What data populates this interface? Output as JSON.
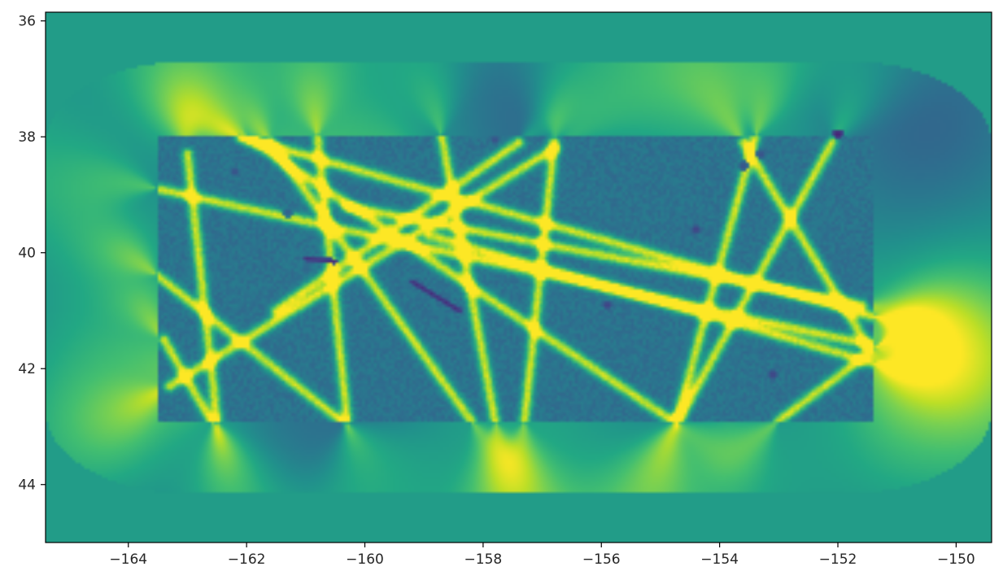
{
  "chart_data": {
    "type": "heatmap",
    "title": "",
    "xlabel": "",
    "ylabel": "",
    "colormap": "viridis",
    "xlim": [
      -165.4,
      -149.4
    ],
    "ylim": [
      45.0,
      35.85
    ],
    "y_axis_inverted": true,
    "grid": false,
    "legend": "none",
    "x_ticks": [
      -164,
      -162,
      -160,
      -158,
      -156,
      -154,
      -152,
      -150
    ],
    "x_tick_labels": [
      "−164",
      "−162",
      "−160",
      "−158",
      "−156",
      "−154",
      "−152",
      "−150"
    ],
    "y_ticks": [
      36,
      38,
      40,
      42,
      44
    ],
    "y_tick_labels": [
      "36",
      "38",
      "40",
      "42",
      "44"
    ],
    "background_value": 0.55,
    "field_extent": {
      "x": [
        -165.4,
        -149.4
      ],
      "y": [
        35.85,
        45.0
      ],
      "corner_radius_deg": 2.3
    },
    "survey_region": {
      "x": [
        -163.5,
        -151.4
      ],
      "y": [
        38.0,
        42.9
      ],
      "value": 0.38
    },
    "track_lines": [
      {
        "x": [
          -162.1,
          -151.4
        ],
        "y": [
          38.0,
          41.1
        ]
      },
      {
        "x": [
          -163.5,
          -151.4
        ],
        "y": [
          38.9,
          41.6
        ]
      },
      {
        "x": [
          -162.0,
          -154.8
        ],
        "y": [
          38.0,
          42.9
        ]
      },
      {
        "x": [
          -163.5,
          -160.4
        ],
        "y": [
          40.4,
          42.9
        ]
      },
      {
        "x": [
          -163.4,
          -162.6
        ],
        "y": [
          41.5,
          42.9
        ]
      },
      {
        "x": [
          -160.8,
          -160.3
        ],
        "y": [
          38.0,
          42.9
        ]
      },
      {
        "x": [
          -158.7,
          -157.8
        ],
        "y": [
          38.0,
          42.9
        ]
      },
      {
        "x": [
          -156.8,
          -157.3
        ],
        "y": [
          38.1,
          42.9
        ]
      },
      {
        "x": [
          -153.4,
          -154.7
        ],
        "y": [
          38.0,
          42.8
        ]
      },
      {
        "x": [
          -152.1,
          -154.7
        ],
        "y": [
          38.1,
          42.9
        ]
      },
      {
        "x": [
          -153.6,
          -151.5
        ],
        "y": [
          38.1,
          41.6
        ]
      },
      {
        "x": [
          -161.6,
          -158.2
        ],
        "y": [
          38.1,
          42.9
        ]
      },
      {
        "x": [
          -163.3,
          -156.8
        ],
        "y": [
          42.3,
          38.2
        ]
      },
      {
        "x": [
          -161.5,
          -157.4
        ],
        "y": [
          41.0,
          38.1
        ]
      },
      {
        "x": [
          -160.3,
          -151.6
        ],
        "y": [
          39.2,
          40.9
        ]
      },
      {
        "x": [
          -158.9,
          -151.4
        ],
        "y": [
          39.7,
          41.9
        ]
      },
      {
        "x": [
          -153.0,
          -151.3
        ],
        "y": [
          42.9,
          41.6
        ]
      },
      {
        "x": [
          -163.0,
          -162.5
        ],
        "y": [
          38.3,
          42.9
        ]
      }
    ],
    "fan_sources": [
      {
        "x": [
          -163.4,
          -162.6
        ],
        "y": [
          41.5,
          42.9
        ],
        "peak": 0.95
      },
      {
        "x": [
          -162.0,
          -157.0
        ],
        "y": [
          38.0,
          38.2
        ],
        "peak": 0.9
      },
      {
        "x": [
          -151.4,
          -151.5
        ],
        "y": [
          41.2,
          41.7
        ],
        "peak": 1.0
      },
      {
        "x": [
          -154.7,
          -153.0
        ],
        "y": [
          42.9,
          42.9
        ],
        "peak": 0.85
      }
    ],
    "dark_spots": [
      {
        "x": -152.0,
        "y": 37.95,
        "v": 0.05
      },
      {
        "x": -154.4,
        "y": 39.6,
        "v": 0.15
      },
      {
        "x": -155.9,
        "y": 40.9,
        "v": 0.15
      },
      {
        "x": -153.1,
        "y": 42.1,
        "v": 0.15
      },
      {
        "x": -161.3,
        "y": 39.3,
        "v": 0.25
      },
      {
        "x": -162.2,
        "y": 38.6,
        "v": 0.2
      },
      {
        "x": -157.8,
        "y": 38.05,
        "v": 0.2
      },
      {
        "x": -153.3,
        "y": 38.3,
        "v": 0.2
      },
      {
        "x": -153.6,
        "y": 38.5,
        "v": 0.2
      }
    ],
    "dark_streaks": [
      {
        "x": [
          -161.0,
          -160.5
        ],
        "y": [
          40.1,
          40.15
        ],
        "v": 0.12
      },
      {
        "x": [
          -159.2,
          -158.4
        ],
        "y": [
          40.5,
          41.0
        ],
        "v": 0.12
      }
    ]
  }
}
